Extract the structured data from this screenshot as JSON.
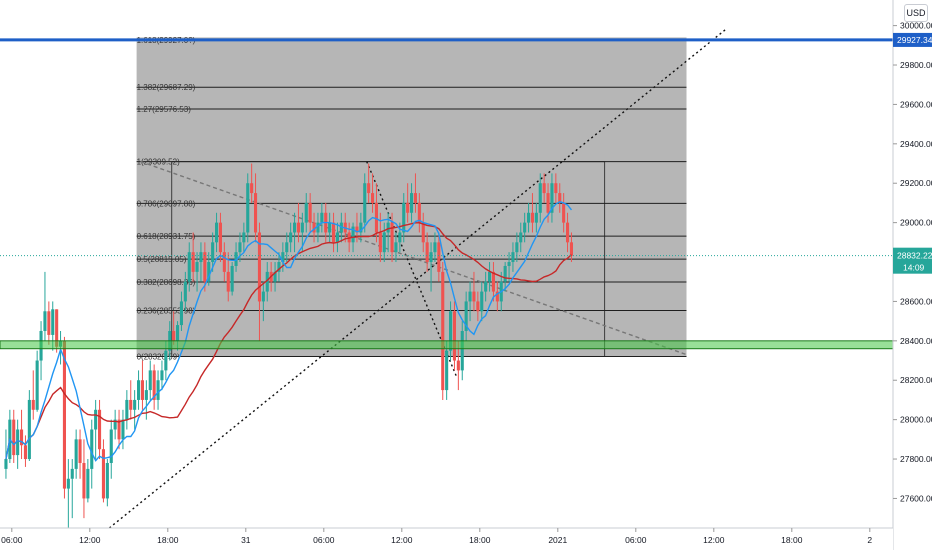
{
  "currency_label": "USD",
  "colors": {
    "up": "#26a69a",
    "down": "#ef5350",
    "ma_fast": "#2196f3",
    "ma_slow": "#c62828",
    "fib_fill": "#b2b2b2",
    "resistance": "#1e5fc7",
    "support": "#43c743",
    "price_tag": "#26a69a",
    "axis_text": "#131722"
  },
  "chart_data": {
    "type": "candlestick",
    "ylim": [
      27450,
      30130
    ],
    "y_ticks": [
      27600,
      27800,
      28000,
      28200,
      28400,
      28600,
      28800,
      29000,
      29200,
      29400,
      29600,
      29800,
      30000
    ],
    "y_tick_labels": [
      "27600.00",
      "27800.00",
      "28000.00",
      "28200.00",
      "28400.00",
      "28600.00",
      "28800.00",
      "29000.00",
      "29200.00",
      "29400.00",
      "29600.00",
      "29800.00",
      "30000.00"
    ],
    "x_ticks": [
      {
        "bar": 2,
        "label": "06:00"
      },
      {
        "bar": 22,
        "label": "12:00"
      },
      {
        "bar": 42,
        "label": "18:00"
      },
      {
        "bar": 62,
        "label": "31"
      },
      {
        "bar": 82,
        "label": "06:00"
      },
      {
        "bar": 102,
        "label": "12:00"
      },
      {
        "bar": 122,
        "label": "18:00"
      },
      {
        "bar": 142,
        "label": "2021"
      },
      {
        "bar": 162,
        "label": "06:00"
      },
      {
        "bar": 182,
        "label": "12:00"
      },
      {
        "bar": 202,
        "label": "18:00"
      },
      {
        "bar": 222,
        "label": "2"
      }
    ],
    "last_price": {
      "value": 28832.22,
      "label": "28832.22",
      "countdown": "14:09"
    },
    "resistance_level": {
      "value": 29927.34,
      "label": "29927.34"
    },
    "support_zone": [
      28360,
      28400
    ],
    "fib_box": {
      "bar_start": 34,
      "bar_end": 175,
      "top": 29940,
      "bottom": 28320.59
    },
    "fib_levels": [
      {
        "value": 29927.0,
        "label": "1.618(29927.0?)"
      },
      {
        "value": 29687.29,
        "label": "1.382(29687.29)"
      },
      {
        "value": 29576.53,
        "label": "1.27(29576.53)"
      },
      {
        "value": 29309.52,
        "label": "1(29309.52)"
      },
      {
        "value": 29097.88,
        "label": "0.786(29097.88)"
      },
      {
        "value": 28931.75,
        "label": "0.618(28931.75)"
      },
      {
        "value": 28815.05,
        "label": "0.5(28815.05)"
      },
      {
        "value": 28698.36,
        "label": "0.382(28698.36)"
      },
      {
        "value": 28553.98,
        "label": "0.236(28553.98)"
      },
      {
        "value": 28320.59,
        "label": "0(28320.59)"
      }
    ],
    "range_box": {
      "bar_start": 43,
      "bar_end": 154,
      "top": 29309.52,
      "bottom": 28320.59
    },
    "trendlines": [
      {
        "style": "dotted",
        "from": [
          27,
          27450
        ],
        "to": [
          185,
          29980
        ]
      },
      {
        "style": "dotted",
        "from": [
          93,
          29310
        ],
        "to": [
          116,
          28220
        ]
      },
      {
        "style": "dashed",
        "from": [
          35,
          29310
        ],
        "to": [
          175,
          28330
        ]
      }
    ],
    "ohlc": [
      [
        27750,
        27950,
        27700,
        27800
      ],
      [
        27800,
        28050,
        27780,
        28000
      ],
      [
        28000,
        28050,
        27780,
        27820
      ],
      [
        27820,
        28000,
        27750,
        27950
      ],
      [
        27950,
        28050,
        27800,
        27870
      ],
      [
        27870,
        27920,
        27760,
        27800
      ],
      [
        27800,
        28150,
        27790,
        28100
      ],
      [
        28100,
        28250,
        28000,
        28050
      ],
      [
        28050,
        28350,
        28040,
        28300
      ],
      [
        28300,
        28500,
        28200,
        28450
      ],
      [
        28450,
        28750,
        28400,
        28550
      ],
      [
        28550,
        28600,
        28380,
        28430
      ],
      [
        28430,
        28600,
        28350,
        28560
      ],
      [
        28560,
        28560,
        28340,
        28370
      ],
      [
        28370,
        28450,
        28280,
        28400
      ],
      [
        28400,
        28420,
        27600,
        27650
      ],
      [
        27650,
        27800,
        27450,
        27700
      ],
      [
        27700,
        27800,
        27500,
        27750
      ],
      [
        27750,
        27950,
        27700,
        27900
      ],
      [
        27900,
        27950,
        27700,
        27780
      ],
      [
        27780,
        27900,
        27500,
        27600
      ],
      [
        27600,
        27800,
        27580,
        27750
      ],
      [
        27750,
        28000,
        27650,
        27950
      ],
      [
        27950,
        28100,
        27800,
        28050
      ],
      [
        28050,
        28100,
        27800,
        27850
      ],
      [
        27850,
        27900,
        27580,
        27600
      ],
      [
        27600,
        27800,
        27560,
        27780
      ],
      [
        27780,
        28000,
        27700,
        27950
      ],
      [
        27950,
        28050,
        27900,
        28000
      ],
      [
        28000,
        28050,
        27850,
        27900
      ],
      [
        27900,
        28050,
        27850,
        28000
      ],
      [
        28000,
        28150,
        27950,
        28100
      ],
      [
        28100,
        28200,
        28000,
        28050
      ],
      [
        28050,
        28150,
        27950,
        28100
      ],
      [
        28100,
        28250,
        28050,
        28200
      ],
      [
        28200,
        28300,
        28050,
        28100
      ],
      [
        28100,
        28200,
        28000,
        28150
      ],
      [
        28150,
        28300,
        28100,
        28250
      ],
      [
        28250,
        28280,
        28050,
        28100
      ],
      [
        28100,
        28250,
        28050,
        28200
      ],
      [
        28200,
        28300,
        28150,
        28250
      ],
      [
        28250,
        28400,
        28200,
        28350
      ],
      [
        28350,
        28500,
        28300,
        28450
      ],
      [
        28450,
        28550,
        28380,
        28400
      ],
      [
        28400,
        28500,
        28350,
        28480
      ],
      [
        28480,
        28650,
        28450,
        28600
      ],
      [
        28600,
        28750,
        28550,
        28700
      ],
      [
        28700,
        28900,
        28650,
        28850
      ],
      [
        28850,
        28950,
        28700,
        28750
      ],
      [
        28750,
        28850,
        28650,
        28800
      ],
      [
        28800,
        28900,
        28700,
        28850
      ],
      [
        28850,
        28900,
        28650,
        28700
      ],
      [
        28700,
        28850,
        28680,
        28800
      ],
      [
        28800,
        28950,
        28750,
        28900
      ],
      [
        28900,
        29050,
        28850,
        29000
      ],
      [
        29000,
        29050,
        28800,
        28850
      ],
      [
        28850,
        28900,
        28700,
        28750
      ],
      [
        28750,
        28850,
        28600,
        28650
      ],
      [
        28650,
        28800,
        28630,
        28780
      ],
      [
        28780,
        28900,
        28750,
        28850
      ],
      [
        28850,
        28950,
        28800,
        28900
      ],
      [
        28900,
        29000,
        28850,
        28950
      ],
      [
        28950,
        29250,
        28900,
        29200
      ],
      [
        29200,
        29300,
        29100,
        29150
      ],
      [
        29150,
        29250,
        28900,
        28950
      ],
      [
        28950,
        29000,
        28400,
        28600
      ],
      [
        28600,
        28700,
        28500,
        28650
      ],
      [
        28650,
        28800,
        28600,
        28750
      ],
      [
        28750,
        28800,
        28650,
        28700
      ],
      [
        28700,
        28800,
        28650,
        28750
      ],
      [
        28750,
        28850,
        28700,
        28800
      ],
      [
        28800,
        28900,
        28750,
        28850
      ],
      [
        28850,
        28950,
        28800,
        28900
      ],
      [
        28900,
        29000,
        28850,
        28950
      ],
      [
        28950,
        29050,
        28850,
        29000
      ],
      [
        29000,
        29100,
        28900,
        28950
      ],
      [
        28950,
        29050,
        28850,
        29000
      ],
      [
        29000,
        29150,
        28950,
        29100
      ],
      [
        29100,
        29150,
        28950,
        29000
      ],
      [
        29000,
        29050,
        28900,
        28950
      ],
      [
        28950,
        29050,
        28900,
        29000
      ],
      [
        29000,
        29100,
        28950,
        29050
      ],
      [
        29050,
        29100,
        28900,
        28950
      ],
      [
        28950,
        29050,
        28900,
        29000
      ],
      [
        29000,
        29050,
        28850,
        28900
      ],
      [
        28900,
        29000,
        28850,
        28950
      ],
      [
        28950,
        29050,
        28900,
        29000
      ],
      [
        29000,
        29050,
        28900,
        28950
      ],
      [
        28950,
        29000,
        28850,
        28900
      ],
      [
        28900,
        29000,
        28850,
        28980
      ],
      [
        28980,
        29050,
        28900,
        28950
      ],
      [
        28950,
        29050,
        28900,
        29000
      ],
      [
        29000,
        29250,
        28950,
        29200
      ],
      [
        29200,
        29300,
        29100,
        29150
      ],
      [
        29150,
        29250,
        29050,
        29100
      ],
      [
        29100,
        29200,
        28900,
        28950
      ],
      [
        28950,
        29050,
        28800,
        28850
      ],
      [
        28850,
        29000,
        28800,
        28950
      ],
      [
        28950,
        29050,
        28850,
        29000
      ],
      [
        29000,
        29050,
        28800,
        28850
      ],
      [
        28850,
        28950,
        28800,
        28900
      ],
      [
        28900,
        29000,
        28850,
        28950
      ],
      [
        28950,
        29150,
        28900,
        29100
      ],
      [
        29100,
        29200,
        29000,
        29050
      ],
      [
        29050,
        29200,
        29000,
        29150
      ],
      [
        29150,
        29250,
        29050,
        29100
      ],
      [
        29100,
        29150,
        28950,
        29000
      ],
      [
        29000,
        29050,
        28850,
        28900
      ],
      [
        28900,
        28950,
        28750,
        28800
      ],
      [
        28800,
        28900,
        28650,
        28850
      ],
      [
        28850,
        28950,
        28800,
        28900
      ],
      [
        28900,
        28950,
        28700,
        28750
      ],
      [
        28750,
        28800,
        28100,
        28150
      ],
      [
        28150,
        28400,
        28100,
        28350
      ],
      [
        28350,
        28600,
        28300,
        28550
      ],
      [
        28550,
        28600,
        28250,
        28300
      ],
      [
        28300,
        28400,
        28150,
        28250
      ],
      [
        28250,
        28500,
        28200,
        28450
      ],
      [
        28450,
        28650,
        28400,
        28600
      ],
      [
        28600,
        28700,
        28500,
        28650
      ],
      [
        28650,
        28750,
        28550,
        28600
      ],
      [
        28600,
        28650,
        28500,
        28550
      ],
      [
        28550,
        28700,
        28500,
        28650
      ],
      [
        28650,
        28750,
        28600,
        28700
      ],
      [
        28700,
        28800,
        28650,
        28750
      ],
      [
        28750,
        28800,
        28600,
        28650
      ],
      [
        28650,
        28700,
        28550,
        28600
      ],
      [
        28600,
        28750,
        28550,
        28700
      ],
      [
        28700,
        28800,
        28650,
        28780
      ],
      [
        28780,
        28850,
        28700,
        28800
      ],
      [
        28800,
        28900,
        28750,
        28850
      ],
      [
        28850,
        28950,
        28800,
        28900
      ],
      [
        28900,
        29000,
        28850,
        28950
      ],
      [
        28950,
        29050,
        28900,
        29000
      ],
      [
        29000,
        29100,
        28950,
        29050
      ],
      [
        29050,
        29150,
        28950,
        29000
      ],
      [
        29000,
        29100,
        28950,
        29050
      ],
      [
        29050,
        29250,
        29000,
        29200
      ],
      [
        29200,
        29250,
        29100,
        29150
      ],
      [
        29150,
        29200,
        29000,
        29050
      ],
      [
        29050,
        29250,
        29000,
        29200
      ],
      [
        29200,
        29250,
        29100,
        29150
      ],
      [
        29150,
        29200,
        29050,
        29100
      ],
      [
        29100,
        29150,
        28950,
        29000
      ],
      [
        29000,
        29050,
        28850,
        28900
      ],
      [
        28900,
        28950,
        28800,
        28832
      ]
    ]
  }
}
